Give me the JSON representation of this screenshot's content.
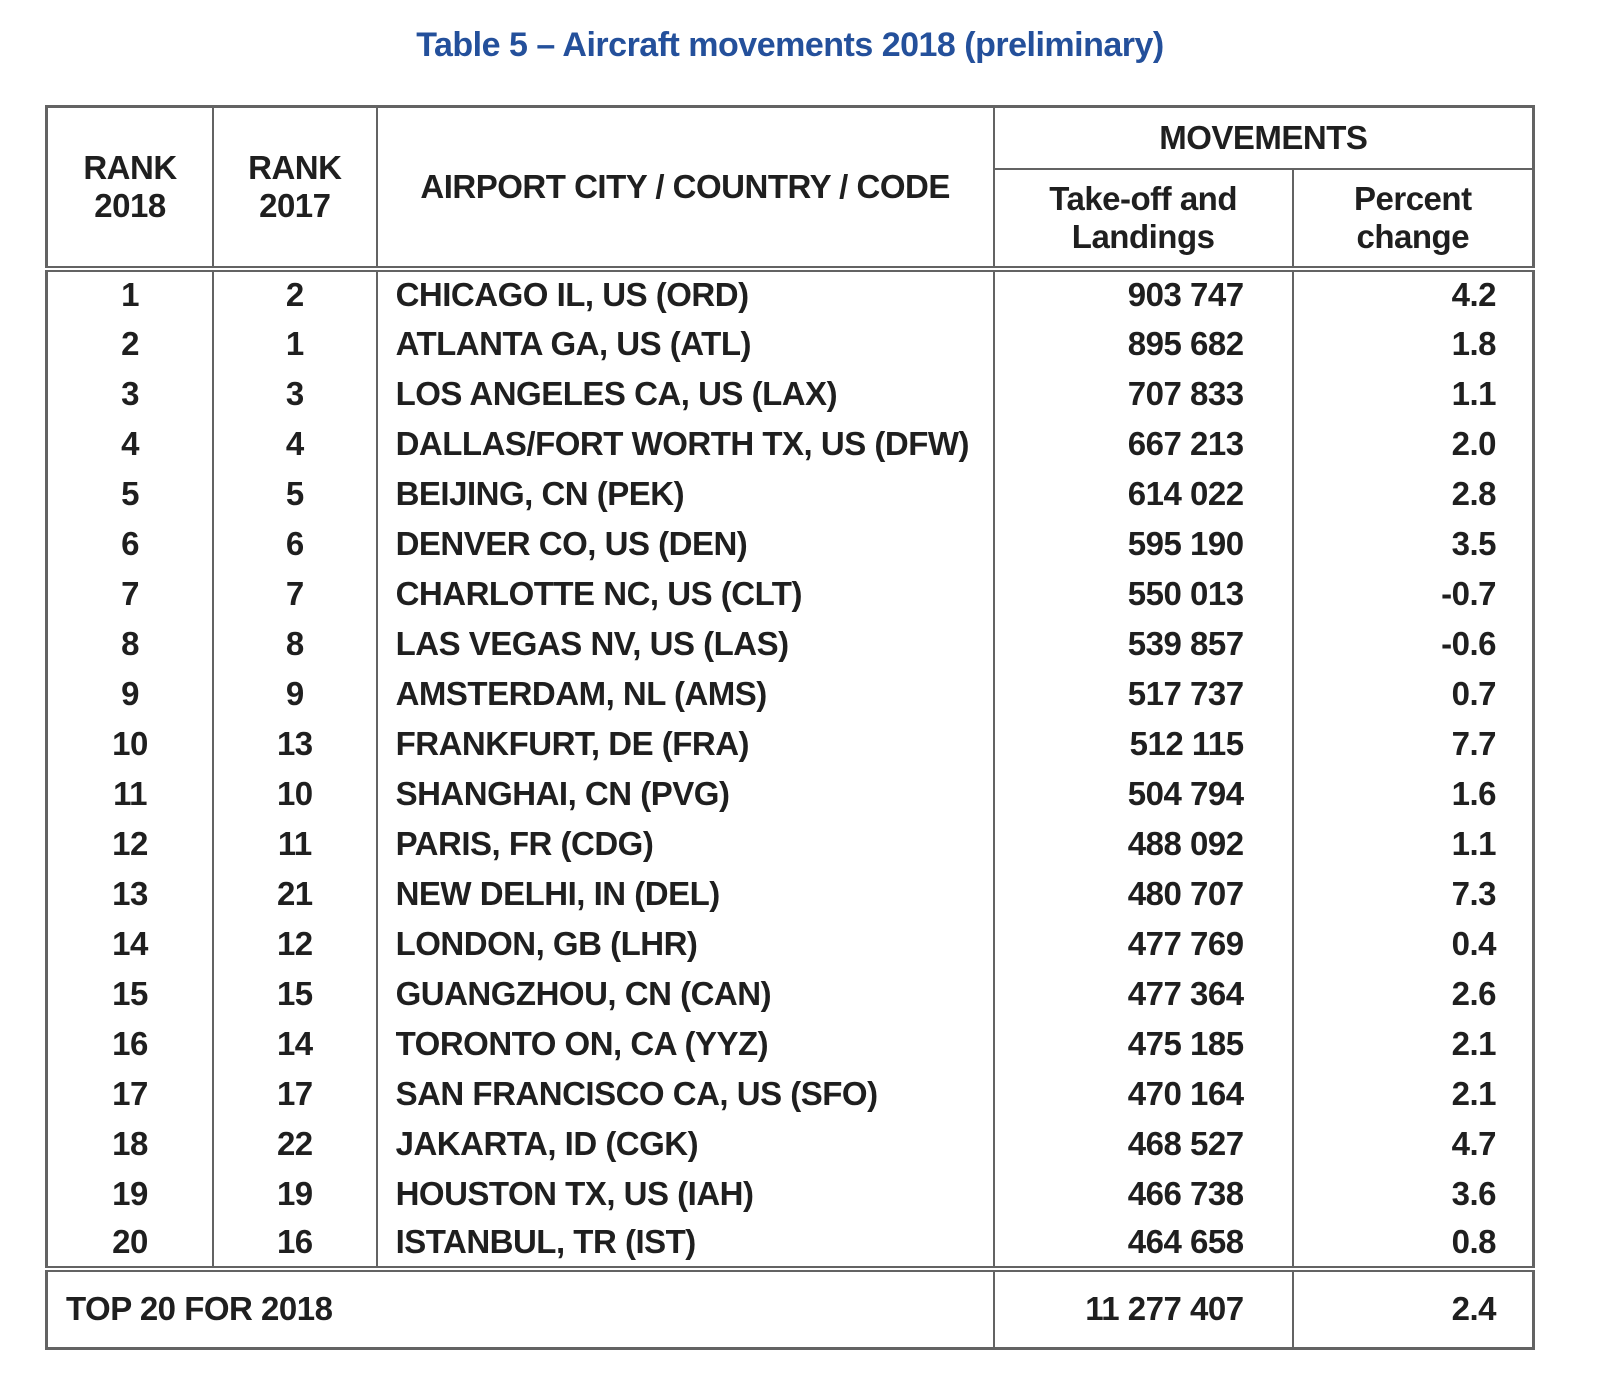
{
  "title": "Table 5 – Aircraft movements 2018 (preliminary)",
  "table": {
    "header": {
      "rank_2018": "RANK 2018",
      "rank_2017": "RANK 2017",
      "airport": "AIRPORT CITY / COUNTRY / CODE",
      "movements_group": "MOVEMENTS",
      "takeoff_landings": "Take-off and Landings",
      "percent_change": "Percent change"
    },
    "rows": [
      {
        "rank_2018": "1",
        "rank_2017": "2",
        "airport": "CHICAGO IL, US (ORD)",
        "movements": "903 747",
        "percent_change": "4.2"
      },
      {
        "rank_2018": "2",
        "rank_2017": "1",
        "airport": "ATLANTA GA, US (ATL)",
        "movements": "895 682",
        "percent_change": "1.8"
      },
      {
        "rank_2018": "3",
        "rank_2017": "3",
        "airport": "LOS ANGELES CA, US (LAX)",
        "movements": "707 833",
        "percent_change": "1.1"
      },
      {
        "rank_2018": "4",
        "rank_2017": "4",
        "airport": "DALLAS/FORT WORTH TX, US (DFW)",
        "movements": "667 213",
        "percent_change": "2.0"
      },
      {
        "rank_2018": "5",
        "rank_2017": "5",
        "airport": "BEIJING, CN (PEK)",
        "movements": "614 022",
        "percent_change": "2.8"
      },
      {
        "rank_2018": "6",
        "rank_2017": "6",
        "airport": "DENVER CO, US (DEN)",
        "movements": "595 190",
        "percent_change": "3.5"
      },
      {
        "rank_2018": "7",
        "rank_2017": "7",
        "airport": "CHARLOTTE NC, US (CLT)",
        "movements": "550 013",
        "percent_change": "-0.7"
      },
      {
        "rank_2018": "8",
        "rank_2017": "8",
        "airport": "LAS VEGAS NV, US (LAS)",
        "movements": "539 857",
        "percent_change": "-0.6"
      },
      {
        "rank_2018": "9",
        "rank_2017": "9",
        "airport": "AMSTERDAM, NL (AMS)",
        "movements": "517 737",
        "percent_change": "0.7"
      },
      {
        "rank_2018": "10",
        "rank_2017": "13",
        "airport": "FRANKFURT, DE (FRA)",
        "movements": "512 115",
        "percent_change": "7.7"
      },
      {
        "rank_2018": "11",
        "rank_2017": "10",
        "airport": "SHANGHAI, CN (PVG)",
        "movements": "504 794",
        "percent_change": "1.6"
      },
      {
        "rank_2018": "12",
        "rank_2017": "11",
        "airport": "PARIS, FR (CDG)",
        "movements": "488 092",
        "percent_change": "1.1"
      },
      {
        "rank_2018": "13",
        "rank_2017": "21",
        "airport": "NEW DELHI, IN (DEL)",
        "movements": "480 707",
        "percent_change": "7.3"
      },
      {
        "rank_2018": "14",
        "rank_2017": "12",
        "airport": "LONDON, GB (LHR)",
        "movements": "477 769",
        "percent_change": "0.4"
      },
      {
        "rank_2018": "15",
        "rank_2017": "15",
        "airport": "GUANGZHOU, CN (CAN)",
        "movements": "477 364",
        "percent_change": "2.6"
      },
      {
        "rank_2018": "16",
        "rank_2017": "14",
        "airport": "TORONTO ON, CA (YYZ)",
        "movements": "475 185",
        "percent_change": "2.1"
      },
      {
        "rank_2018": "17",
        "rank_2017": "17",
        "airport": "SAN FRANCISCO CA, US (SFO)",
        "movements": "470 164",
        "percent_change": "2.1"
      },
      {
        "rank_2018": "18",
        "rank_2017": "22",
        "airport": "JAKARTA, ID (CGK)",
        "movements": "468 527",
        "percent_change": "4.7"
      },
      {
        "rank_2018": "19",
        "rank_2017": "19",
        "airport": "HOUSTON TX, US (IAH)",
        "movements": "466 738",
        "percent_change": "3.6"
      },
      {
        "rank_2018": "20",
        "rank_2017": "16",
        "airport": "ISTANBUL, TR (IST)",
        "movements": "464 658",
        "percent_change": "0.8"
      }
    ],
    "total_row": {
      "label": "TOP 20 FOR 2018",
      "movements": "11 277 407",
      "percent_change": "2.4"
    }
  },
  "colors": {
    "title_blue": "#24509b",
    "border_gray": "#636363",
    "text_black": "#1f1f1f",
    "background": "#ffffff"
  }
}
